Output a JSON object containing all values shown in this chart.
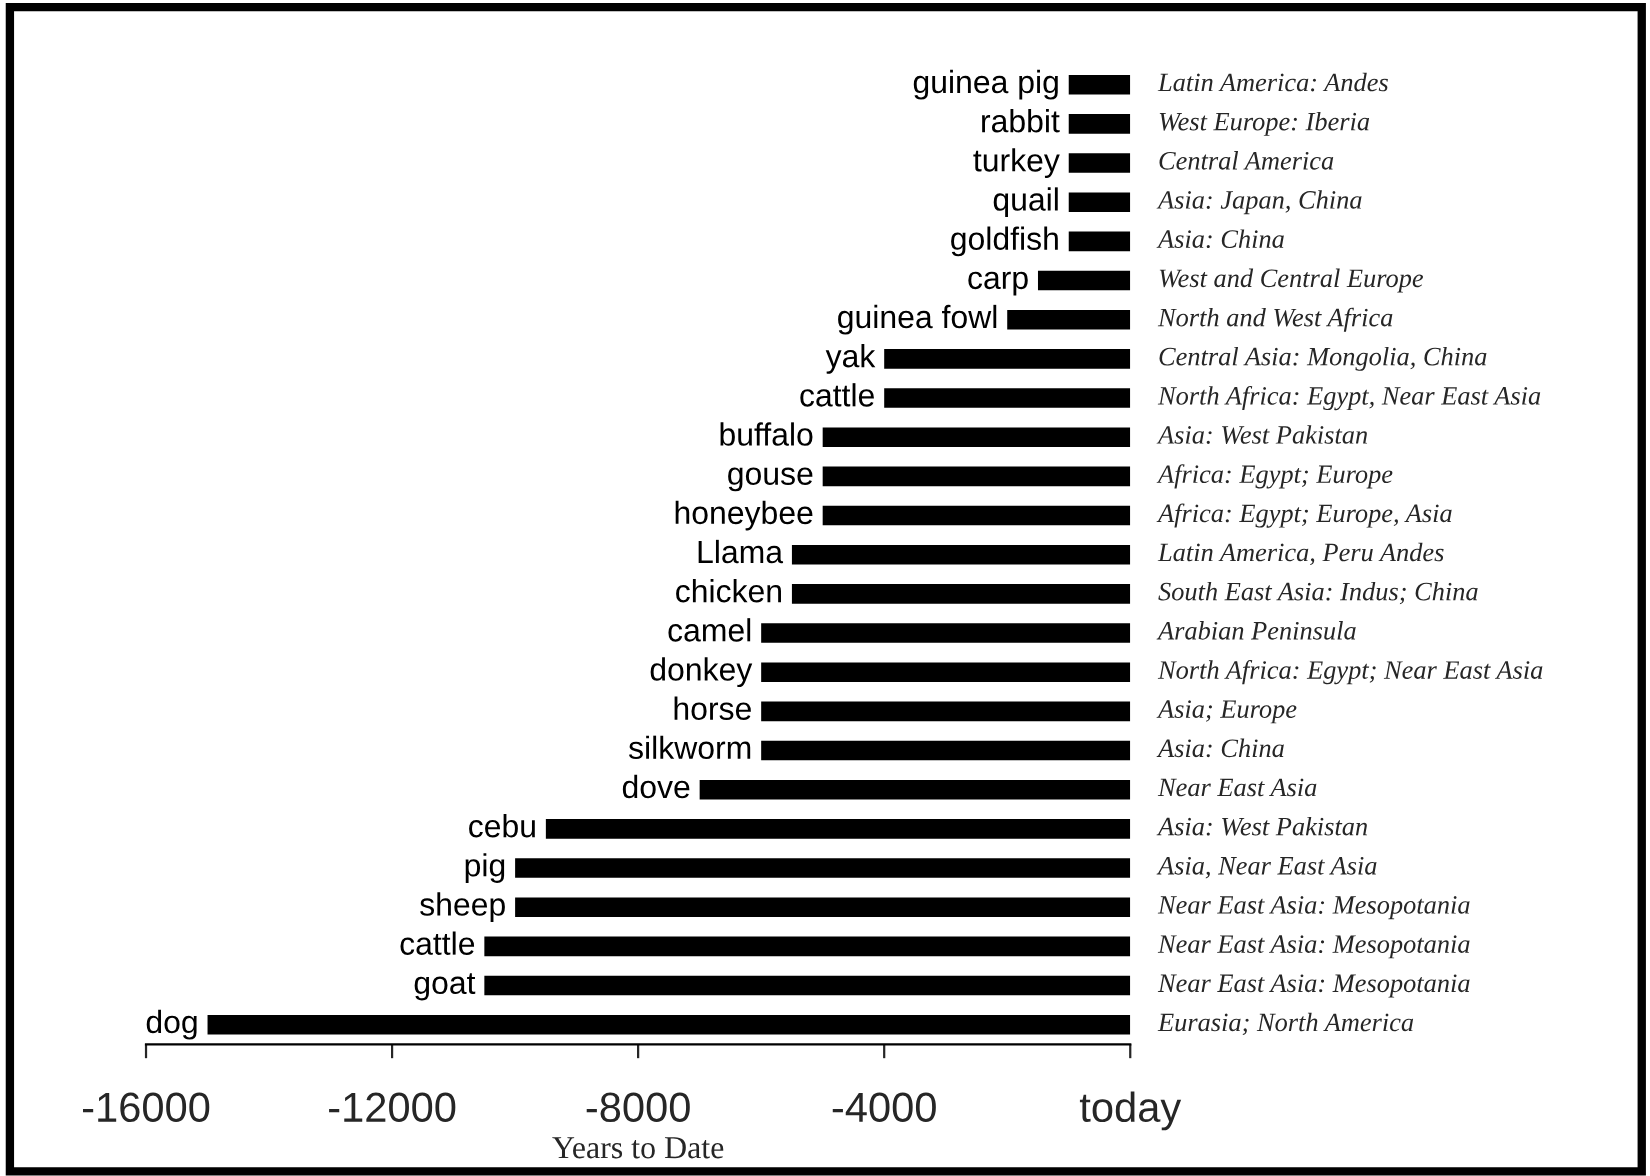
{
  "chart_data": {
    "type": "bar",
    "orientation": "horizontal",
    "xlabel": "Years to Date",
    "color": "#000000",
    "categories": [
      "guinea pig",
      "rabbit",
      "turkey",
      "quail",
      "goldfish",
      "carp",
      "guinea fowl",
      "yak",
      "cattle",
      "buffalo",
      "gouse",
      "honeybee",
      "Llama",
      "chicken",
      "camel",
      "donkey",
      "horse",
      "silkworm",
      "dove",
      "cebu",
      "pig",
      "sheep",
      "cattle",
      "goat",
      "dog"
    ],
    "values": [
      -1000,
      -1000,
      -1000,
      -1000,
      -1000,
      -1500,
      -2000,
      -4000,
      -4000,
      -5000,
      -5000,
      -5000,
      -5500,
      -5500,
      -6000,
      -6000,
      -6000,
      -6000,
      -7000,
      -9500,
      -10000,
      -10000,
      -10500,
      -10500,
      -15000
    ],
    "annotations": [
      "Latin America: Andes",
      "West Europe: Iberia",
      "Central America",
      "Asia: Japan, China",
      "Asia: China",
      "West and Central Europe",
      "North and West Africa",
      "Central Asia: Mongolia, China",
      "North Africa: Egypt, Near East Asia",
      "Asia: West Pakistan",
      "Africa: Egypt; Europe",
      "Africa: Egypt; Europe, Asia",
      "Latin America, Peru Andes",
      "South East Asia: Indus; China",
      "Arabian Peninsula",
      "North Africa: Egypt; Near East Asia",
      "Asia; Europe",
      "Asia: China",
      "Near East Asia",
      "Asia: West Pakistan",
      "Asia, Near East Asia",
      "Near East Asia: Mesopotania",
      "Near East Asia: Mesopotania",
      "Near East Asia: Mesopotania",
      "Eurasia; North America"
    ],
    "xlim": [
      -16000,
      0
    ],
    "xticks": [
      -16000,
      -12000,
      -8000,
      -4000,
      {
        "value": 0,
        "label": "today"
      }
    ],
    "tick_labels": "x",
    "grid": false,
    "legend": false
  }
}
